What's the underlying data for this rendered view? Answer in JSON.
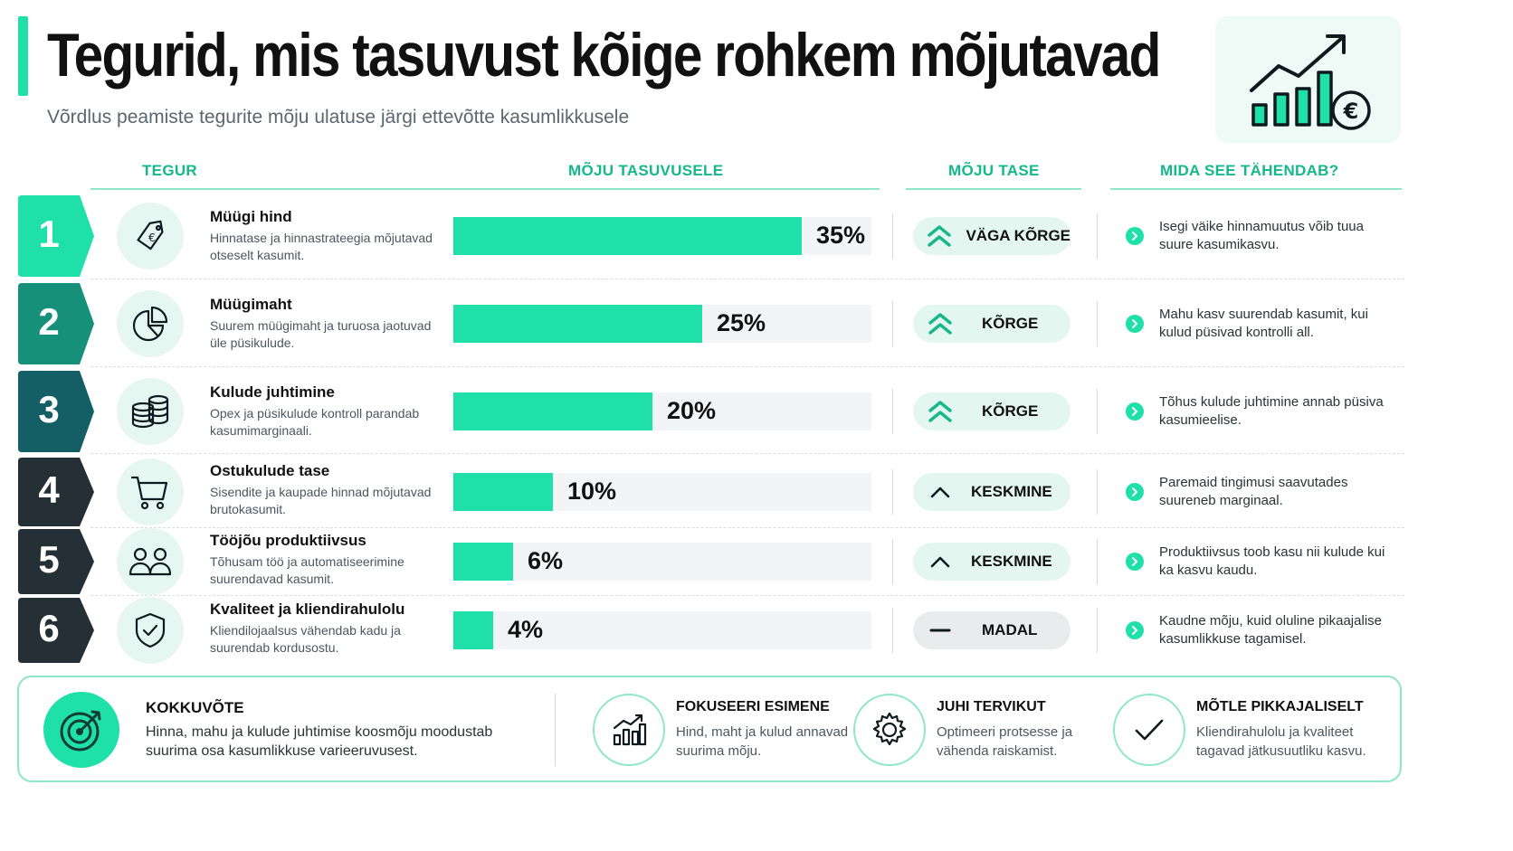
{
  "header": {
    "title": "Tegurid, mis tasuvust kõige rohkem mõjutavad",
    "subtitle": "Võrdlus peamiste tegurite mõju ulatuse järgi ettevõtte kasumlikkusele"
  },
  "columns": {
    "factor": "TEGUR",
    "impact": "MÕJU TASUVUSELE",
    "level": "MÕJU TASE",
    "meaning": "MIDA SEE TÄHENDAB?"
  },
  "colors": {
    "accent": "#1fe0a8",
    "badge_1": "#1fe0a8",
    "badge_2": "#17907a",
    "badge_3": "#145f66",
    "badge_4": "#252f36",
    "badge_5": "#252f36",
    "badge_6": "#252f36"
  },
  "chart_data": {
    "type": "bar",
    "orientation": "horizontal",
    "categories": [
      "Müügi hind",
      "Müügimaht",
      "Kulude juhtimine",
      "Ostukulude tase",
      "Tööjõu produktiivsus",
      "Kvaliteet ja kliendirahulolu"
    ],
    "values": [
      35,
      25,
      20,
      10,
      6,
      4
    ],
    "value_labels": [
      "35%",
      "25%",
      "20%",
      "10%",
      "6%",
      "4%"
    ],
    "xlim": [
      0,
      42
    ],
    "title": "MÕJU TASUVUSELE",
    "grid": false,
    "legend": "none"
  },
  "rows": [
    {
      "num": "1",
      "icon": "price-tag-euro-icon",
      "title": "Müügi hind",
      "desc": "Hinnatase ja hinnastrateegia mõjutavad otseselt kasumit.",
      "level": "VÄGA KÕRGE",
      "level_icon": "double-chevron-up-icon",
      "meaning": "Isegi väike hinnamuutus võib tuua suure kasumikasvu."
    },
    {
      "num": "2",
      "icon": "pie-chart-icon",
      "title": "Müügimaht",
      "desc": "Suurem müügimaht ja turuosa jaotuvad üle püsikulude.",
      "level": "KÕRGE",
      "level_icon": "double-chevron-up-icon",
      "meaning": "Mahu kasv suurendab kasumit, kui kulud püsivad kontrolli all."
    },
    {
      "num": "3",
      "icon": "coin-stack-icon",
      "title": "Kulude juhtimine",
      "desc": "Opex ja püsikulude kontroll parandab kasumimarginaali.",
      "level": "KÕRGE",
      "level_icon": "double-chevron-up-icon",
      "meaning": "Tõhus kulude juhtimine annab püsiva kasumieelise."
    },
    {
      "num": "4",
      "icon": "shopping-cart-icon",
      "title": "Ostukulude tase",
      "desc": "Sisendite ja kaupade hinnad mõjutavad brutokasumit.",
      "level": "KESKMINE",
      "level_icon": "chevron-up-icon",
      "meaning": "Paremaid tingimusi saavutades suureneb marginaal."
    },
    {
      "num": "5",
      "icon": "people-icon",
      "title": "Tööjõu produktiivsus",
      "desc": "Tõhusam töö ja automatiseerimine suurendavad kasumit.",
      "level": "KESKMINE",
      "level_icon": "chevron-up-icon",
      "meaning": "Produktiivsus toob kasu nii kulude kui ka kasvu kaudu."
    },
    {
      "num": "6",
      "icon": "shield-check-icon",
      "title": "Kvaliteet ja kliendirahulolu",
      "desc": "Kliendilojaalsus vähendab kadu ja suurendab kordusostu.",
      "level": "MADAL",
      "level_icon": "dash-icon",
      "meaning": "Kaudne mõju, kuid oluline pikaajalise kasumlikkuse tagamisel."
    }
  ],
  "summary": {
    "title": "KOKKUVÕTE",
    "text": "Hinna, mahu ja kulude juhtimise koosmõju moodustab suurima osa kasumlikkuse varieeruvusest.",
    "icon": "target-icon"
  },
  "tips": [
    {
      "title": "FOKUSEERI ESIMENE",
      "text": "Hind, maht ja kulud annavad suurima mõju.",
      "icon": "bar-chart-icon"
    },
    {
      "title": "JUHI TERVIKUT",
      "text": "Optimeeri protsesse ja vähenda raiskamist.",
      "icon": "gear-icon"
    },
    {
      "title": "MÕTLE PIKKAJALISELT",
      "text": "Kliendirahulolu ja kvaliteet tagavad jätkusuutliku kasvu.",
      "icon": "checkmark-icon"
    }
  ]
}
